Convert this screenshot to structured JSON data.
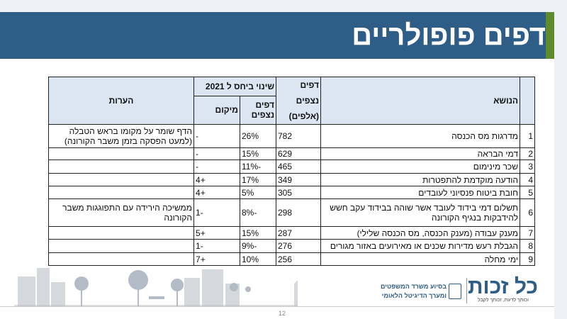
{
  "title": "דפים פופולריים",
  "table": {
    "headers": {
      "topic": "הנושא",
      "views": "דפים נצפים",
      "views_unit": "(אלפים)",
      "change_group": "שינוי ביחס ל 2021",
      "change_pages": "דפים נצפים",
      "change_location": "מיקום",
      "notes": "הערות"
    },
    "rows": [
      {
        "n": "1",
        "topic": "מדרגות מס הכנסה",
        "views": "782",
        "pct": "26%",
        "loc": "-",
        "note": "הדף שומר על מקומו בראש הטבלה (למעט הפסקה בזמן משבר הקורונה)"
      },
      {
        "n": "2",
        "topic": "דמי הבראה",
        "views": "629",
        "pct": "15%",
        "loc": "-",
        "note": ""
      },
      {
        "n": "3",
        "topic": "שכר מינימום",
        "views": "465",
        "pct": "-11%",
        "loc": "-",
        "note": ""
      },
      {
        "n": "4",
        "topic": "הודעה מוקדמת להתפטרות",
        "views": "349",
        "pct": "17%",
        "loc": "+4",
        "note": ""
      },
      {
        "n": "5",
        "topic": "חובת ביטוח פנסיוני לעובדים",
        "views": "305",
        "pct": "5%",
        "loc": "+4",
        "note": ""
      },
      {
        "n": "6",
        "topic": "תשלום דמי בידוד לעובד אשר שוהה בבידוד עקב חשש להידבקות בנגיף הקורונה",
        "views": "298",
        "pct": "-8%",
        "loc": "-1",
        "note": "ממשיכה הירידה עם התפוגגות משבר הקורונה"
      },
      {
        "n": "7",
        "topic": "מענק עבודה (מענק הכנסה, מס הכנסה שלילי)",
        "views": "287",
        "pct": "15%",
        "loc": "+5",
        "note": ""
      },
      {
        "n": "8",
        "topic": "הגבלת רעש מדירות שכנים או מאירועים באזור מגורים",
        "views": "276",
        "pct": "-9%",
        "loc": "-1",
        "note": ""
      },
      {
        "n": "9",
        "topic": "ימי מחלה",
        "views": "256",
        "pct": "10%",
        "loc": "+7",
        "note": ""
      }
    ]
  },
  "footer": {
    "logo": "כל זכות",
    "tagline": "וכותך לדעת, זכותך לקבל",
    "ministry_line1": "בסיוע משרד המשפטים",
    "ministry_line2": "ומערך הדיגיטל הלאומי",
    "page_number": "12"
  },
  "colors": {
    "banner": "#2e5d87",
    "accent": "#5f8a2e",
    "header_bg": "#dce6f2"
  }
}
